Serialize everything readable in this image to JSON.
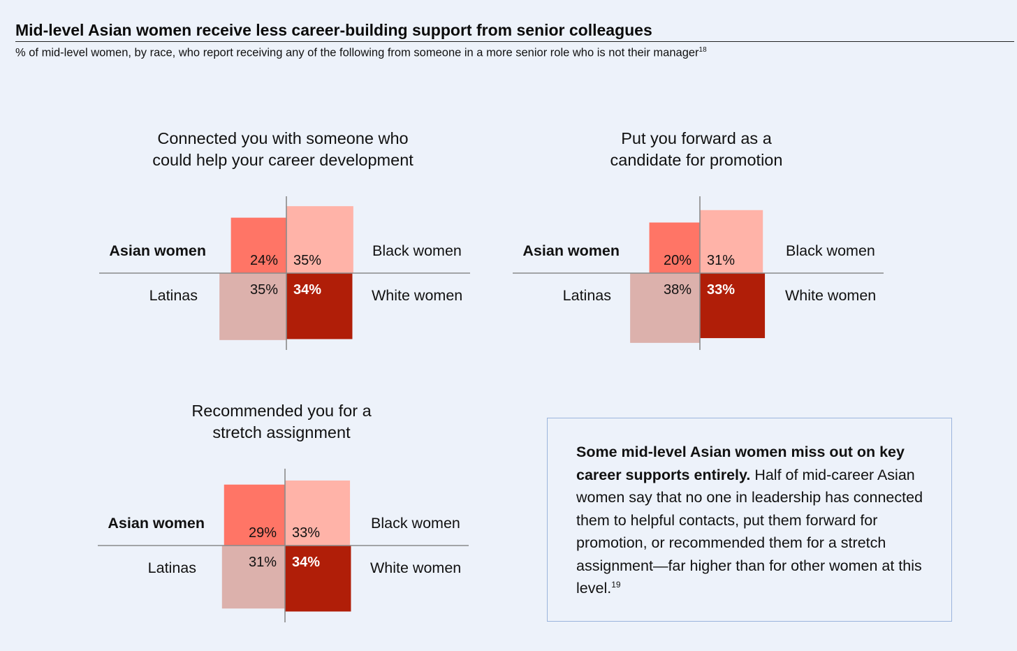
{
  "title": "Mid-level Asian women receive less career-building support from senior colleagues",
  "subtitle": "% of mid-level women, by race, who report receiving any of the following from someone in a more senior role who is not their manager",
  "subtitle_footnote": "18",
  "colors": {
    "asian": "#ff7566",
    "black": "#ffb3a8",
    "latina": "#dcb1ac",
    "white": "#b01e08",
    "axis": "#8a8a8a",
    "background": "#edf2fa",
    "callout_border": "#9bb4dc"
  },
  "labels": {
    "asian": "Asian women",
    "black": "Black women",
    "latina": "Latinas",
    "white": "White women"
  },
  "chart_data": [
    {
      "type": "quadrant-area",
      "title_lines": [
        "Connected you with someone who",
        "could help your career development"
      ],
      "unit": "%",
      "categories": [
        "Asian women",
        "Black women",
        "Latinas",
        "White women"
      ],
      "values": [
        24,
        35,
        35,
        34
      ],
      "value_labels": [
        "24%",
        "35%",
        "35%",
        "34%"
      ]
    },
    {
      "type": "quadrant-area",
      "title_lines": [
        "Put you forward as a",
        "candidate for promotion"
      ],
      "unit": "%",
      "categories": [
        "Asian women",
        "Black women",
        "Latinas",
        "White women"
      ],
      "values": [
        20,
        31,
        38,
        33
      ],
      "value_labels": [
        "20%",
        "31%",
        "38%",
        "33%"
      ]
    },
    {
      "type": "quadrant-area",
      "title_lines": [
        "Recommended you for a",
        "stretch assignment"
      ],
      "unit": "%",
      "categories": [
        "Asian women",
        "Black women",
        "Latinas",
        "White women"
      ],
      "values": [
        29,
        33,
        31,
        34
      ],
      "value_labels": [
        "29%",
        "33%",
        "31%",
        "34%"
      ]
    }
  ],
  "callout": {
    "bold": "Some mid-level Asian women miss out on key career supports entirely.",
    "text": "Half of mid-career Asian women say that no one in leadership has connected them to helpful contacts, put them forward for promotion, or recommended them for a stretch assignment—far higher than for other women at this level.",
    "footnote": "19"
  }
}
